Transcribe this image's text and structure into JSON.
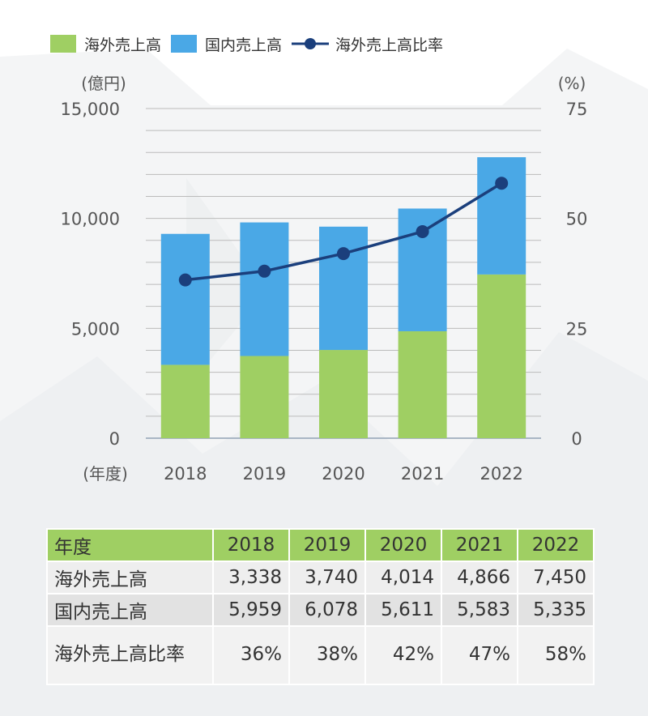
{
  "legend": {
    "overseas": "海外売上高",
    "domestic": "国内売上高",
    "ratio": "海外売上高比率"
  },
  "colors": {
    "overseas": "#9fcf63",
    "domestic": "#4aa8e6",
    "ratio": "#1b3f7c",
    "grid": "#bbbbbb",
    "table_header": "#9fcf63"
  },
  "chart_data": {
    "type": "bar",
    "stacked": true,
    "categories": [
      "2018",
      "2019",
      "2020",
      "2021",
      "2022"
    ],
    "series": [
      {
        "name": "海外売上高",
        "type": "bar",
        "axis": "left",
        "values": [
          3338,
          3740,
          4014,
          4866,
          7450
        ]
      },
      {
        "name": "国内売上高",
        "type": "bar",
        "axis": "left",
        "values": [
          5959,
          6078,
          5611,
          5583,
          5335
        ]
      },
      {
        "name": "海外売上高比率",
        "type": "line",
        "axis": "right",
        "values": [
          36,
          38,
          42,
          47,
          58
        ]
      }
    ],
    "ylabel_left": "(億円)",
    "ylabel_right": "(%)",
    "xlabel": "(年度)",
    "ylim_left": [
      0,
      15000
    ],
    "ylim_right": [
      0,
      75
    ],
    "yticks_left": [
      "0",
      "5,000",
      "10,000",
      "15,000"
    ],
    "yticks_right": [
      "0",
      "25",
      "50",
      "75"
    ],
    "grid": true,
    "legend_position": "top-left"
  },
  "table": {
    "header_label": "年度",
    "years": [
      "2018",
      "2019",
      "2020",
      "2021",
      "2022"
    ],
    "rows": [
      {
        "label": "海外売上高",
        "values": [
          "3,338",
          "3,740",
          "4,014",
          "4,866",
          "7,450"
        ]
      },
      {
        "label": "国内売上高",
        "values": [
          "5,959",
          "6,078",
          "5,611",
          "5,583",
          "5,335"
        ]
      },
      {
        "label": "海外売上高比率",
        "values": [
          "36%",
          "38%",
          "42%",
          "47%",
          "58%"
        ]
      }
    ]
  }
}
